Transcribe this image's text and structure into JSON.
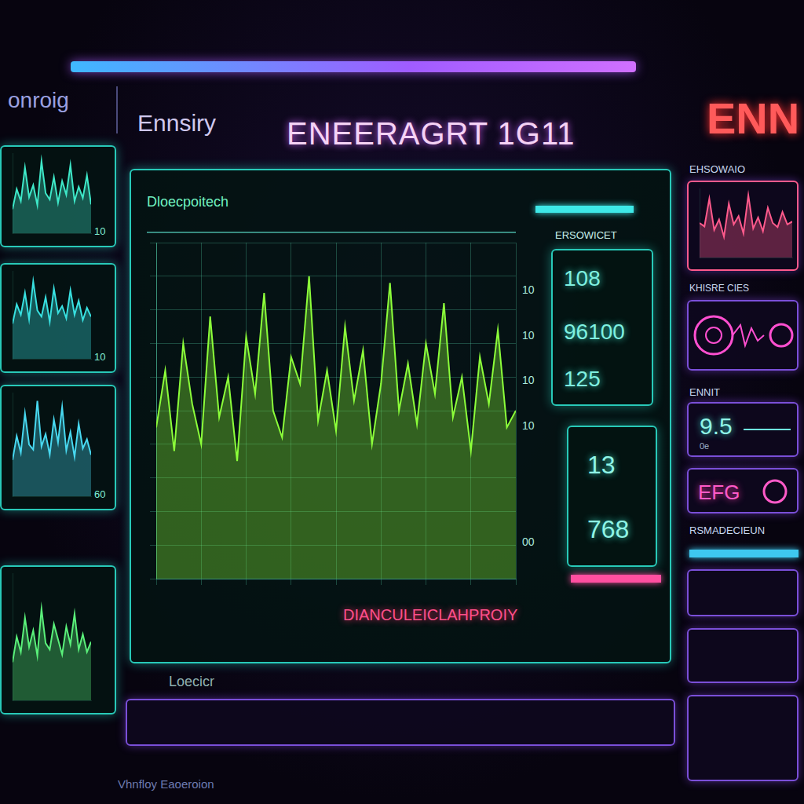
{
  "header": {
    "brand": "onroig",
    "tab": "Ennsiry",
    "title": "ENEERAGRT 1G11"
  },
  "main_panel": {
    "subtitle": "Dloecpoitech",
    "side_marks": [
      "10",
      "10",
      "10",
      "10",
      "00"
    ],
    "stats_title": "ERSOWICET",
    "stats": [
      108,
      96100,
      125
    ],
    "stats_lower": [
      13,
      768
    ],
    "footer": "DIANCULEICLAHPROIY"
  },
  "bottom_left": "Loecicr",
  "bottom_text": "Vhnfloy Eaoeroion",
  "right_panel": {
    "heading": "ENN",
    "labels": [
      "EHSOWAIO",
      "KHISRE CIES",
      "ENNIT",
      "RSMADECIEUN"
    ],
    "value": 9.5,
    "value_unit": "0e",
    "code": "EFG"
  },
  "chart_data": [
    {
      "type": "line",
      "color": "#8cff3a",
      "grid": true,
      "tick_labels": false,
      "x": [
        0,
        1,
        2,
        3,
        4,
        5,
        6,
        7,
        8,
        9,
        10,
        11,
        12,
        13,
        14,
        15,
        16,
        17,
        18,
        19,
        20,
        21,
        22,
        23,
        24,
        25,
        26,
        27,
        28,
        29,
        30,
        31,
        32,
        33,
        34,
        35,
        36,
        37,
        38,
        39,
        40
      ],
      "values": [
        45,
        62,
        38,
        70,
        52,
        40,
        78,
        48,
        60,
        35,
        72,
        55,
        85,
        50,
        42,
        66,
        58,
        90,
        47,
        62,
        44,
        75,
        53,
        68,
        40,
        58,
        88,
        50,
        64,
        46,
        70,
        55,
        82,
        48,
        60,
        38,
        66,
        52,
        74,
        45,
        50
      ],
      "xlim": [
        0,
        40
      ],
      "xticks": [
        0,
        5,
        10,
        15,
        20,
        25,
        30,
        35,
        40
      ],
      "ylim": [
        0,
        100
      ],
      "yticks": [
        0,
        10,
        20,
        30,
        40,
        50,
        60,
        70,
        80,
        90,
        100
      ]
    },
    {
      "type": "line",
      "color": "#3ee8c8",
      "grid": false,
      "tick_labels": false,
      "annotations": [
        "10"
      ],
      "x": [
        0,
        1,
        2,
        3,
        4,
        5,
        6,
        7,
        8,
        9,
        10,
        11,
        12,
        13,
        14,
        15,
        16,
        17,
        18,
        19
      ],
      "values": [
        30,
        55,
        40,
        82,
        45,
        60,
        35,
        90,
        50,
        42,
        70,
        38,
        65,
        48,
        85,
        40,
        58,
        44,
        72,
        36
      ],
      "xlim": [
        0,
        19
      ],
      "xticks": [
        0,
        19
      ],
      "ylim": [
        0,
        100
      ],
      "yticks": [
        0,
        100
      ]
    },
    {
      "type": "line",
      "color": "#38e0e0",
      "grid": false,
      "tick_labels": false,
      "annotations": [
        "10"
      ],
      "x": [
        0,
        1,
        2,
        3,
        4,
        5,
        6,
        7,
        8,
        9,
        10,
        11,
        12,
        13,
        14,
        15,
        16,
        17,
        18,
        19
      ],
      "values": [
        40,
        62,
        50,
        75,
        45,
        88,
        55,
        48,
        70,
        42,
        80,
        52,
        60,
        46,
        78,
        50,
        66,
        44,
        58,
        48
      ],
      "xlim": [
        0,
        19
      ],
      "xticks": [
        0,
        19
      ],
      "ylim": [
        0,
        100
      ],
      "yticks": [
        0,
        100
      ]
    },
    {
      "type": "line",
      "color": "#48d8f0",
      "grid": false,
      "tick_labels": false,
      "annotations": [
        "60"
      ],
      "x": [
        0,
        1,
        2,
        3,
        4,
        5,
        6,
        7,
        8,
        9,
        10,
        11,
        12,
        13,
        14,
        15,
        16,
        17,
        18,
        19
      ],
      "values": [
        35,
        58,
        42,
        80,
        50,
        45,
        92,
        48,
        60,
        40,
        74,
        52,
        86,
        44,
        62,
        38,
        70,
        46,
        55,
        40
      ],
      "xlim": [
        0,
        19
      ],
      "xticks": [
        0,
        19
      ],
      "ylim": [
        0,
        100
      ],
      "yticks": [
        0,
        100
      ]
    },
    {
      "type": "line",
      "color": "#5af07a",
      "grid": false,
      "tick_labels": false,
      "x": [
        0,
        1,
        2,
        3,
        4,
        5,
        6,
        7,
        8,
        9,
        10,
        11,
        12,
        13,
        14,
        15,
        16,
        17,
        18,
        19
      ],
      "values": [
        30,
        50,
        38,
        65,
        42,
        55,
        35,
        72,
        45,
        40,
        60,
        48,
        36,
        58,
        44,
        68,
        40,
        52,
        38,
        46
      ],
      "xlim": [
        0,
        19
      ],
      "xticks": [
        0,
        19
      ],
      "ylim": [
        0,
        100
      ],
      "yticks": [
        0,
        100
      ]
    },
    {
      "type": "line",
      "color": "#ff5a8c",
      "grid": false,
      "tick_labels": false,
      "x": [
        0,
        1,
        2,
        3,
        4,
        5,
        6,
        7,
        8,
        9,
        10,
        11,
        12,
        13,
        14,
        15,
        16,
        17,
        18,
        19
      ],
      "values": [
        50,
        45,
        85,
        40,
        55,
        30,
        78,
        48,
        60,
        35,
        90,
        42,
        58,
        38,
        72,
        50,
        44,
        66,
        48,
        52
      ],
      "xlim": [
        0,
        19
      ],
      "xticks": [
        0,
        19
      ],
      "ylim": [
        0,
        100
      ],
      "yticks": [
        0,
        100
      ]
    }
  ]
}
